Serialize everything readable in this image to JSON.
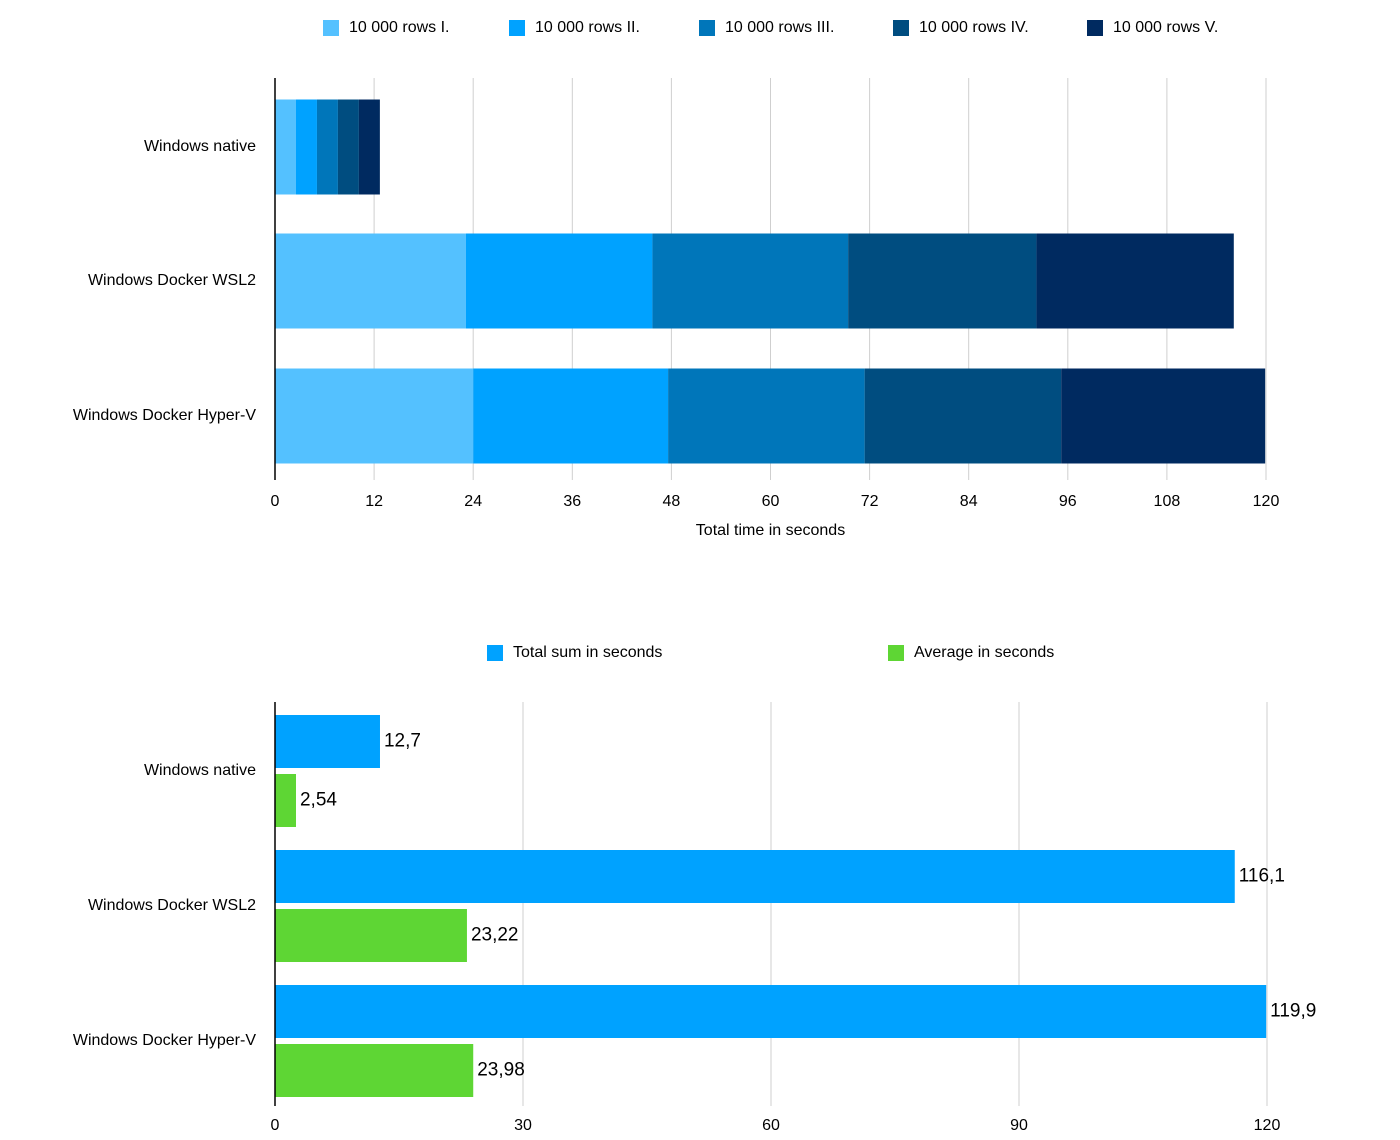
{
  "chart_data": [
    {
      "type": "bar",
      "orientation": "horizontal",
      "stacked": true,
      "categories": [
        "Windows native",
        "Windows Docker WSL2",
        "Windows Docker Hyper-V"
      ],
      "series": [
        {
          "name": "10 000 rows I.",
          "color": "#54C1FF",
          "values": [
            2.54,
            23.1,
            24.0
          ]
        },
        {
          "name": "10 000 rows II.",
          "color": "#00A2FF",
          "values": [
            2.54,
            22.6,
            23.6
          ]
        },
        {
          "name": "10 000 rows III.",
          "color": "#0076BA",
          "values": [
            2.54,
            23.7,
            23.8
          ]
        },
        {
          "name": "10 000 rows IV.",
          "color": "#004D80",
          "values": [
            2.54,
            22.8,
            23.8
          ]
        },
        {
          "name": "10 000 rows V.",
          "color": "#002A60",
          "values": [
            2.54,
            23.9,
            24.7
          ]
        }
      ],
      "xlabel": "Total time in seconds",
      "xlim": [
        0,
        120
      ],
      "xticks": [
        "0",
        "12",
        "24",
        "36",
        "48",
        "60",
        "72",
        "84",
        "96",
        "108",
        "120"
      ],
      "grid": "vertical",
      "legend": "top-center"
    },
    {
      "type": "bar",
      "orientation": "horizontal",
      "stacked": false,
      "categories": [
        "Windows native",
        "Windows Docker WSL2",
        "Windows Docker Hyper-V"
      ],
      "series": [
        {
          "name": "Total sum in seconds",
          "color": "#00A2FF",
          "values": [
            12.7,
            116.1,
            119.9
          ],
          "labels": [
            "12,7",
            "116,1",
            "119,9"
          ]
        },
        {
          "name": "Average in seconds",
          "color": "#5ED634",
          "values": [
            2.54,
            23.22,
            23.98
          ],
          "labels": [
            "2,54",
            "23,22",
            "23,98"
          ]
        }
      ],
      "xlabel": "",
      "xlim": [
        0,
        120
      ],
      "xticks": [
        "0",
        "30",
        "60",
        "90",
        "120"
      ],
      "grid": "vertical",
      "legend": "top-center"
    }
  ]
}
